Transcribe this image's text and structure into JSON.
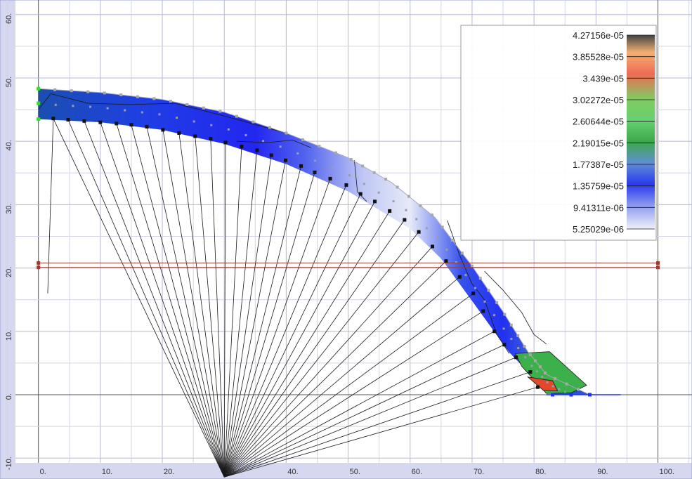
{
  "chart_data": {
    "type": "contour",
    "xlim": [
      -6.2,
      105.5
    ],
    "ylim": [
      -13.3,
      62.3
    ],
    "x_ticks": [
      {
        "value": 0,
        "label": "0."
      },
      {
        "value": 10,
        "label": "10."
      },
      {
        "value": 20,
        "label": "20."
      },
      {
        "value": 30,
        "label": "30."
      },
      {
        "value": 40,
        "label": "40."
      },
      {
        "value": 50,
        "label": "50."
      },
      {
        "value": 60,
        "label": "60."
      },
      {
        "value": 70,
        "label": "70."
      },
      {
        "value": 80,
        "label": "80."
      },
      {
        "value": 90,
        "label": "90."
      },
      {
        "value": 100,
        "label": "100."
      }
    ],
    "y_ticks": [
      {
        "value": -10,
        "label": "-10."
      },
      {
        "value": 0,
        "label": "0."
      },
      {
        "value": 10,
        "label": "10."
      },
      {
        "value": 20,
        "label": "20."
      },
      {
        "value": 30,
        "label": "30."
      },
      {
        "value": 40,
        "label": "40."
      },
      {
        "value": 50,
        "label": "50."
      },
      {
        "value": 60,
        "label": "60."
      }
    ],
    "colorbar": {
      "labels": [
        "4.27156e-05",
        "3.85528e-05",
        "3.439e-05",
        "3.02272e-05",
        "2.60644e-05",
        "2.19015e-05",
        "1.77387e-05",
        "1.35759e-05",
        "9.41311e-06",
        "5.25029e-06"
      ],
      "colors": [
        "#444444",
        "#f5b070",
        "#ee6b55",
        "#7fcc60",
        "#66d070",
        "#3ca84a",
        "#5f8fd2",
        "#2a38ef",
        "#8d9bef",
        "#f0f0fa"
      ]
    },
    "section": {
      "outer_top": [
        [
          0,
          48.3
        ],
        [
          10,
          47.7
        ],
        [
          20,
          46.6
        ],
        [
          30,
          44.6
        ],
        [
          40,
          41.3
        ],
        [
          50,
          37.4
        ],
        [
          57,
          33.5
        ],
        [
          64,
          28.0
        ],
        [
          70,
          20.3
        ],
        [
          75,
          13.1
        ],
        [
          79,
          6.8
        ],
        [
          82,
          3.2
        ],
        [
          89,
          0
        ]
      ],
      "inner_bottom": [
        [
          0,
          43.5
        ],
        [
          10,
          43.0
        ],
        [
          20,
          41.8
        ],
        [
          30,
          39.6
        ],
        [
          40,
          36.4
        ],
        [
          50,
          32.1
        ],
        [
          60,
          26.2
        ],
        [
          65,
          21.5
        ],
        [
          70,
          14.8
        ],
        [
          76,
          6.7
        ],
        [
          80,
          2.6
        ],
        [
          83,
          0
        ]
      ],
      "toe": [
        [
          82,
          0
        ],
        [
          89,
          0
        ]
      ]
    },
    "hot_zone": {
      "red": [
        [
          79,
          2.8
        ],
        [
          83,
          2.2
        ],
        [
          83.8,
          0.6
        ],
        [
          81.5,
          0.7
        ]
      ],
      "green": [
        [
          77,
          6.5
        ],
        [
          82.5,
          6.8
        ],
        [
          88.5,
          1.5
        ],
        [
          86,
          0.3
        ],
        [
          82,
          0.2
        ],
        [
          78,
          4.5
        ]
      ]
    },
    "slip_center": [
      30,
      -13
    ],
    "slip_line_ends": [
      [
        2.4,
        43.6
      ],
      [
        4.8,
        43.4
      ],
      [
        7.4,
        43.2
      ],
      [
        10.0,
        43.0
      ],
      [
        12.6,
        42.8
      ],
      [
        15.0,
        42.6
      ],
      [
        17.5,
        42.3
      ],
      [
        20.1,
        41.8
      ],
      [
        22.7,
        41.3
      ],
      [
        25.3,
        40.8
      ],
      [
        27.8,
        40.4
      ],
      [
        30.2,
        39.8
      ],
      [
        32.8,
        39.2
      ],
      [
        35.3,
        38.6
      ],
      [
        37.6,
        37.8
      ],
      [
        39.9,
        37.0
      ],
      [
        42.4,
        36.1
      ],
      [
        44.6,
        35.1
      ],
      [
        47.1,
        34.1
      ],
      [
        49.7,
        33.1
      ],
      [
        52.0,
        31.7
      ],
      [
        54.3,
        30.5
      ],
      [
        56.7,
        29.0
      ],
      [
        59.1,
        27.6
      ],
      [
        61.4,
        25.7
      ],
      [
        63.6,
        23.4
      ],
      [
        65.8,
        21.1
      ],
      [
        68.0,
        18.6
      ],
      [
        70.2,
        16.0
      ],
      [
        71.8,
        13.2
      ],
      [
        73.6,
        10.0
      ],
      [
        75.2,
        7.9
      ],
      [
        77.1,
        5.9
      ],
      [
        79.4,
        3.6
      ],
      [
        80.6,
        1.2
      ]
    ],
    "support_segment": {
      "x": [
        0,
        100
      ],
      "y_upper": 20.8,
      "y_lower": 20.1
    }
  }
}
